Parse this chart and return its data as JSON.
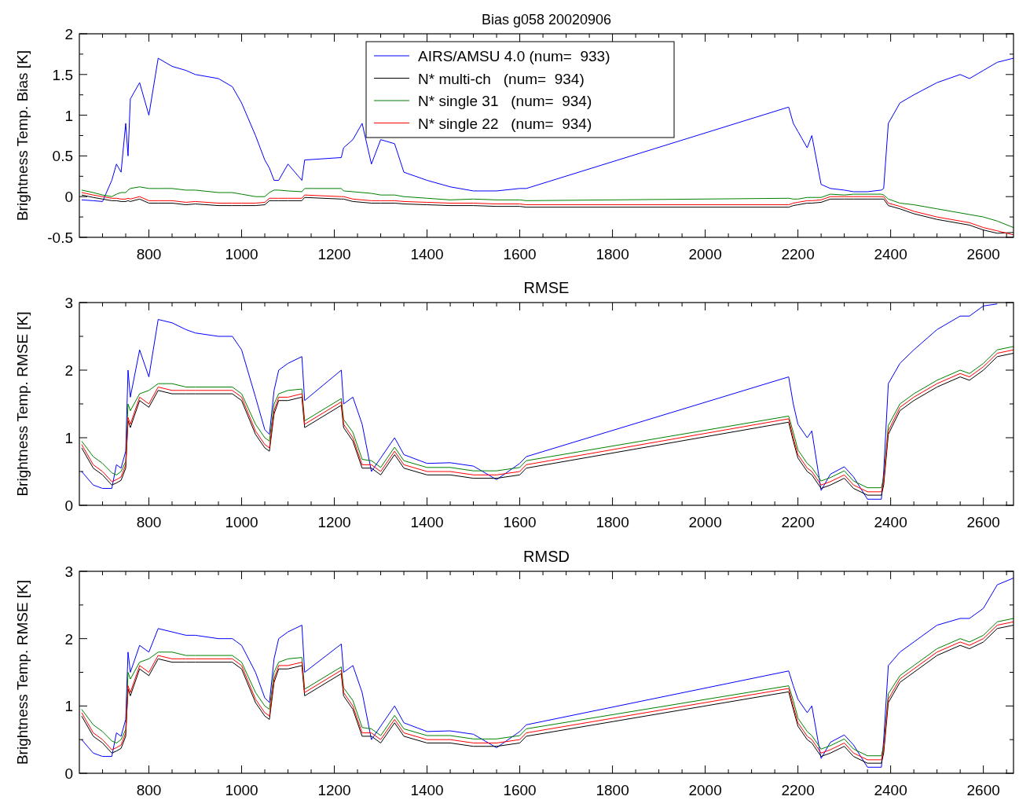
{
  "chart_data": [
    {
      "type": "line",
      "title": "Bias g058 20020906",
      "ylabel": "Brightness Temp. Bias [K]",
      "legend": "top",
      "xlim": [
        650,
        2665
      ],
      "ylim": [
        -0.5,
        2
      ],
      "xticks": [
        {
          "value": 700,
          "label": null
        },
        {
          "value": 750,
          "label": null
        },
        800,
        {
          "value": 850,
          "label": null
        },
        {
          "value": 900,
          "label": null
        },
        {
          "value": 950,
          "label": null
        },
        1000,
        {
          "value": 1050,
          "label": null
        },
        {
          "value": 1100,
          "label": null
        },
        {
          "value": 1150,
          "label": null
        },
        1200,
        {
          "value": 1250,
          "label": null
        },
        {
          "value": 1300,
          "label": null
        },
        {
          "value": 1350,
          "label": null
        },
        1400,
        {
          "value": 1450,
          "label": null
        },
        {
          "value": 1500,
          "label": null
        },
        {
          "value": 1550,
          "label": null
        },
        1600,
        {
          "value": 1650,
          "label": null
        },
        {
          "value": 1700,
          "label": null
        },
        {
          "value": 1750,
          "label": null
        },
        1800,
        {
          "value": 1850,
          "label": null
        },
        {
          "value": 1900,
          "label": null
        },
        {
          "value": 1950,
          "label": null
        },
        2000,
        {
          "value": 2050,
          "label": null
        },
        {
          "value": 2100,
          "label": null
        },
        {
          "value": 2150,
          "label": null
        },
        2200,
        {
          "value": 2250,
          "label": null
        },
        {
          "value": 2300,
          "label": null
        },
        {
          "value": 2350,
          "label": null
        },
        2400,
        {
          "value": 2450,
          "label": null
        },
        {
          "value": 2500,
          "label": null
        },
        {
          "value": 2550,
          "label": null
        },
        2600,
        {
          "value": 2650,
          "label": null
        }
      ],
      "yticks": [
        -0.5,
        {
          "value": -0.25,
          "label": null
        },
        0,
        {
          "value": 0.25,
          "label": null
        },
        0.5,
        {
          "value": 0.75,
          "label": null
        },
        1,
        {
          "value": 1.25,
          "label": null
        },
        1.5,
        {
          "value": 1.75,
          "label": null
        },
        2
      ],
      "x": [
        655,
        680,
        700,
        720,
        730,
        740,
        750,
        755,
        760,
        780,
        800,
        820,
        850,
        880,
        900,
        950,
        980,
        1000,
        1030,
        1050,
        1060,
        1070,
        1080,
        1100,
        1130,
        1136,
        1215,
        1220,
        1240,
        1260,
        1280,
        1300,
        1330,
        1350,
        1400,
        1450,
        1500,
        1550,
        1600,
        1614,
        2180,
        2190,
        2200,
        2220,
        2230,
        2250,
        2270,
        2300,
        2320,
        2350,
        2380,
        2385,
        2395,
        2420,
        2450,
        2500,
        2550,
        2570,
        2600,
        2630,
        2665
      ],
      "series": [
        {
          "name": "AIRS/AMSU 4.0 (num=  933)",
          "color": "#0000ff",
          "values": [
            -0.04,
            -0.05,
            -0.06,
            0.2,
            0.4,
            0.3,
            0.9,
            0.5,
            1.2,
            1.4,
            1.0,
            1.7,
            1.6,
            1.55,
            1.5,
            1.45,
            1.35,
            1.15,
            0.75,
            0.45,
            0.35,
            0.2,
            0.2,
            0.4,
            0.2,
            0.45,
            0.48,
            0.6,
            0.7,
            0.9,
            0.4,
            0.7,
            0.65,
            0.3,
            0.2,
            0.12,
            0.07,
            0.07,
            0.1,
            0.1,
            1.1,
            0.9,
            0.8,
            0.6,
            0.75,
            0.15,
            0.1,
            0.08,
            0.06,
            0.06,
            0.08,
            0.1,
            0.9,
            1.15,
            1.25,
            1.4,
            1.5,
            1.45,
            1.55,
            1.65,
            1.7
          ]
        },
        {
          "name": "N* multi-ch   (num=  934)",
          "color": "#000000",
          "values": [
            0.02,
            -0.01,
            -0.03,
            -0.05,
            -0.05,
            -0.06,
            -0.06,
            -0.05,
            -0.06,
            -0.03,
            -0.08,
            -0.08,
            -0.08,
            -0.1,
            -0.09,
            -0.11,
            -0.11,
            -0.11,
            -0.11,
            -0.1,
            -0.05,
            -0.05,
            -0.05,
            -0.05,
            -0.05,
            -0.01,
            -0.03,
            -0.03,
            -0.06,
            -0.07,
            -0.08,
            -0.08,
            -0.08,
            -0.09,
            -0.1,
            -0.11,
            -0.11,
            -0.12,
            -0.12,
            -0.13,
            -0.13,
            -0.11,
            -0.1,
            -0.08,
            -0.08,
            -0.07,
            -0.03,
            -0.03,
            -0.03,
            -0.03,
            -0.03,
            -0.03,
            -0.11,
            -0.15,
            -0.21,
            -0.28,
            -0.33,
            -0.35,
            -0.41,
            -0.45,
            -0.44
          ]
        },
        {
          "name": "N* single 31   (num=  934)",
          "color": "#008000",
          "values": [
            0.08,
            0.05,
            0.02,
            0.0,
            0.03,
            0.05,
            0.05,
            0.08,
            0.1,
            0.12,
            0.1,
            0.1,
            0.1,
            0.08,
            0.08,
            0.05,
            0.05,
            0.03,
            0.0,
            0.0,
            0.05,
            0.08,
            0.08,
            0.07,
            0.06,
            0.1,
            0.1,
            0.07,
            0.06,
            0.05,
            0.04,
            0.02,
            0.02,
            0.0,
            -0.02,
            -0.04,
            -0.03,
            -0.04,
            -0.04,
            -0.05,
            -0.02,
            -0.03,
            -0.03,
            -0.01,
            -0.01,
            -0.01,
            0.03,
            0.02,
            0.03,
            0.03,
            0.03,
            0.02,
            -0.03,
            -0.08,
            -0.1,
            -0.15,
            -0.2,
            -0.22,
            -0.25,
            -0.3,
            -0.38
          ]
        },
        {
          "name": "N* single 22   (num=  934)",
          "color": "#ff0000",
          "values": [
            0.05,
            0.02,
            0.0,
            -0.02,
            -0.02,
            -0.03,
            -0.03,
            -0.02,
            -0.03,
            0.0,
            -0.05,
            -0.05,
            -0.05,
            -0.07,
            -0.06,
            -0.08,
            -0.08,
            -0.08,
            -0.08,
            -0.07,
            -0.02,
            -0.02,
            -0.02,
            -0.02,
            -0.02,
            0.02,
            0.0,
            0.0,
            -0.03,
            -0.04,
            -0.05,
            -0.05,
            -0.05,
            -0.06,
            -0.07,
            -0.08,
            -0.08,
            -0.09,
            -0.09,
            -0.1,
            -0.1,
            -0.08,
            -0.07,
            -0.05,
            -0.05,
            -0.04,
            0.0,
            0.0,
            0.0,
            0.0,
            0.0,
            0.0,
            -0.08,
            -0.12,
            -0.18,
            -0.25,
            -0.3,
            -0.32,
            -0.38,
            -0.42,
            -0.47
          ]
        }
      ]
    },
    {
      "type": "line",
      "title": "RMSE",
      "ylabel": "Brightness Temp. RMSE [K]",
      "xlim": [
        650,
        2665
      ],
      "ylim": [
        0,
        3
      ],
      "xticks": [
        {
          "value": 700,
          "label": null
        },
        {
          "value": 750,
          "label": null
        },
        800,
        {
          "value": 850,
          "label": null
        },
        {
          "value": 900,
          "label": null
        },
        {
          "value": 950,
          "label": null
        },
        1000,
        {
          "value": 1050,
          "label": null
        },
        {
          "value": 1100,
          "label": null
        },
        {
          "value": 1150,
          "label": null
        },
        1200,
        {
          "value": 1250,
          "label": null
        },
        {
          "value": 1300,
          "label": null
        },
        {
          "value": 1350,
          "label": null
        },
        1400,
        {
          "value": 1450,
          "label": null
        },
        {
          "value": 1500,
          "label": null
        },
        {
          "value": 1550,
          "label": null
        },
        1600,
        {
          "value": 1650,
          "label": null
        },
        {
          "value": 1700,
          "label": null
        },
        {
          "value": 1750,
          "label": null
        },
        1800,
        {
          "value": 1850,
          "label": null
        },
        {
          "value": 1900,
          "label": null
        },
        {
          "value": 1950,
          "label": null
        },
        2000,
        {
          "value": 2050,
          "label": null
        },
        {
          "value": 2100,
          "label": null
        },
        {
          "value": 2150,
          "label": null
        },
        2200,
        {
          "value": 2250,
          "label": null
        },
        {
          "value": 2300,
          "label": null
        },
        {
          "value": 2350,
          "label": null
        },
        2400,
        {
          "value": 2450,
          "label": null
        },
        {
          "value": 2500,
          "label": null
        },
        {
          "value": 2550,
          "label": null
        },
        2600,
        {
          "value": 2650,
          "label": null
        }
      ],
      "yticks": [
        0,
        {
          "value": 0.5,
          "label": null
        },
        1,
        {
          "value": 1.5,
          "label": null
        },
        2,
        {
          "value": 2.5,
          "label": null
        },
        3
      ],
      "x": [
        655,
        680,
        700,
        720,
        730,
        740,
        750,
        755,
        760,
        780,
        800,
        820,
        850,
        880,
        900,
        950,
        980,
        1000,
        1030,
        1050,
        1060,
        1070,
        1080,
        1100,
        1130,
        1136,
        1215,
        1220,
        1240,
        1260,
        1280,
        1300,
        1330,
        1350,
        1400,
        1450,
        1500,
        1550,
        1600,
        1614,
        2180,
        2190,
        2200,
        2220,
        2230,
        2250,
        2270,
        2300,
        2320,
        2350,
        2380,
        2385,
        2395,
        2420,
        2450,
        2500,
        2550,
        2570,
        2600,
        2630,
        2665
      ],
      "series": [
        {
          "color": "#0000ff",
          "values": [
            0.5,
            0.3,
            0.25,
            0.25,
            0.6,
            0.55,
            0.8,
            2.0,
            1.6,
            2.3,
            1.9,
            2.75,
            2.7,
            2.6,
            2.55,
            2.5,
            2.5,
            2.3,
            1.6,
            1.12,
            1.05,
            1.7,
            2.0,
            2.1,
            2.2,
            1.55,
            2.0,
            1.5,
            1.6,
            1.2,
            0.5,
            0.7,
            1.0,
            0.75,
            0.62,
            0.63,
            0.58,
            0.38,
            0.62,
            0.72,
            1.9,
            1.5,
            1.2,
            1.0,
            1.1,
            0.22,
            0.46,
            0.57,
            0.42,
            0.09,
            0.09,
            0.5,
            1.8,
            2.1,
            2.3,
            2.6,
            2.8,
            2.8,
            2.95,
            2.98,
            null
          ]
        },
        {
          "color": "#000000",
          "values": [
            0.85,
            0.55,
            0.45,
            0.3,
            0.33,
            0.37,
            0.55,
            1.25,
            1.15,
            1.55,
            1.45,
            1.7,
            1.65,
            1.65,
            1.65,
            1.65,
            1.65,
            1.55,
            1.05,
            0.85,
            0.8,
            1.35,
            1.55,
            1.55,
            1.6,
            1.15,
            1.48,
            1.15,
            0.95,
            0.55,
            0.55,
            0.45,
            0.75,
            0.55,
            0.45,
            0.45,
            0.4,
            0.4,
            0.45,
            0.55,
            1.23,
            0.95,
            0.7,
            0.5,
            0.45,
            0.25,
            0.3,
            0.4,
            0.25,
            0.15,
            0.15,
            0.3,
            1.05,
            1.4,
            1.55,
            1.75,
            1.9,
            1.85,
            2.0,
            2.2,
            2.25
          ]
        },
        {
          "color": "#008000",
          "values": [
            0.95,
            0.72,
            0.62,
            0.48,
            0.45,
            0.5,
            0.65,
            1.5,
            1.4,
            1.65,
            1.7,
            1.8,
            1.8,
            1.75,
            1.75,
            1.75,
            1.75,
            1.65,
            1.2,
            1.0,
            0.95,
            1.5,
            1.65,
            1.7,
            1.72,
            1.25,
            1.58,
            1.27,
            1.08,
            0.68,
            0.66,
            0.56,
            0.86,
            0.66,
            0.56,
            0.56,
            0.51,
            0.51,
            0.56,
            0.66,
            1.32,
            1.08,
            0.82,
            0.62,
            0.56,
            0.36,
            0.41,
            0.51,
            0.36,
            0.26,
            0.26,
            0.41,
            1.18,
            1.5,
            1.65,
            1.85,
            2.0,
            1.95,
            2.1,
            2.3,
            2.35
          ]
        },
        {
          "color": "#ff0000",
          "values": [
            0.9,
            0.6,
            0.5,
            0.35,
            0.38,
            0.42,
            0.6,
            1.3,
            1.2,
            1.6,
            1.5,
            1.75,
            1.7,
            1.7,
            1.7,
            1.7,
            1.7,
            1.6,
            1.1,
            0.9,
            0.85,
            1.4,
            1.6,
            1.6,
            1.65,
            1.2,
            1.53,
            1.2,
            1.0,
            0.6,
            0.6,
            0.5,
            0.8,
            0.6,
            0.5,
            0.5,
            0.45,
            0.45,
            0.5,
            0.6,
            1.28,
            1.0,
            0.75,
            0.55,
            0.5,
            0.3,
            0.35,
            0.45,
            0.3,
            0.2,
            0.2,
            0.35,
            1.1,
            1.45,
            1.6,
            1.8,
            1.95,
            1.9,
            2.05,
            2.25,
            2.3
          ]
        }
      ]
    },
    {
      "type": "line",
      "title": "RMSD",
      "ylabel": "Brightness Temp. RMSE [K]",
      "xlim": [
        650,
        2665
      ],
      "ylim": [
        0,
        3
      ],
      "xticks": [
        {
          "value": 700,
          "label": null
        },
        {
          "value": 750,
          "label": null
        },
        800,
        {
          "value": 850,
          "label": null
        },
        {
          "value": 900,
          "label": null
        },
        {
          "value": 950,
          "label": null
        },
        1000,
        {
          "value": 1050,
          "label": null
        },
        {
          "value": 1100,
          "label": null
        },
        {
          "value": 1150,
          "label": null
        },
        1200,
        {
          "value": 1250,
          "label": null
        },
        {
          "value": 1300,
          "label": null
        },
        {
          "value": 1350,
          "label": null
        },
        1400,
        {
          "value": 1450,
          "label": null
        },
        {
          "value": 1500,
          "label": null
        },
        {
          "value": 1550,
          "label": null
        },
        1600,
        {
          "value": 1650,
          "label": null
        },
        {
          "value": 1700,
          "label": null
        },
        {
          "value": 1750,
          "label": null
        },
        1800,
        {
          "value": 1850,
          "label": null
        },
        {
          "value": 1900,
          "label": null
        },
        {
          "value": 1950,
          "label": null
        },
        2000,
        {
          "value": 2050,
          "label": null
        },
        {
          "value": 2100,
          "label": null
        },
        {
          "value": 2150,
          "label": null
        },
        2200,
        {
          "value": 2250,
          "label": null
        },
        {
          "value": 2300,
          "label": null
        },
        {
          "value": 2350,
          "label": null
        },
        2400,
        {
          "value": 2450,
          "label": null
        },
        {
          "value": 2500,
          "label": null
        },
        {
          "value": 2550,
          "label": null
        },
        2600,
        {
          "value": 2650,
          "label": null
        }
      ],
      "yticks": [
        0,
        {
          "value": 0.5,
          "label": null
        },
        1,
        {
          "value": 1.5,
          "label": null
        },
        2,
        {
          "value": 2.5,
          "label": null
        },
        3
      ],
      "x": [
        655,
        680,
        700,
        720,
        730,
        740,
        750,
        755,
        760,
        780,
        800,
        820,
        850,
        880,
        900,
        950,
        980,
        1000,
        1030,
        1050,
        1060,
        1070,
        1080,
        1100,
        1130,
        1136,
        1215,
        1220,
        1240,
        1260,
        1280,
        1300,
        1330,
        1350,
        1400,
        1450,
        1500,
        1550,
        1600,
        1614,
        2180,
        2190,
        2200,
        2220,
        2230,
        2250,
        2270,
        2300,
        2320,
        2350,
        2380,
        2385,
        2395,
        2420,
        2450,
        2500,
        2550,
        2570,
        2600,
        2630,
        2665
      ],
      "series": [
        {
          "color": "#0000ff",
          "values": [
            0.5,
            0.3,
            0.25,
            0.25,
            0.6,
            0.55,
            0.8,
            1.8,
            1.5,
            1.9,
            1.8,
            2.15,
            2.1,
            2.05,
            2.05,
            2.0,
            2.0,
            1.9,
            1.5,
            1.12,
            1.05,
            1.7,
            2.0,
            2.1,
            2.2,
            1.5,
            1.92,
            1.5,
            1.6,
            1.2,
            0.5,
            0.7,
            1.0,
            0.75,
            0.62,
            0.63,
            0.58,
            0.38,
            0.62,
            0.72,
            1.52,
            1.3,
            1.1,
            0.9,
            1.0,
            0.22,
            0.46,
            0.57,
            0.42,
            0.09,
            0.09,
            0.5,
            1.6,
            1.8,
            1.95,
            2.2,
            2.3,
            2.3,
            2.45,
            2.8,
            2.9
          ]
        },
        {
          "color": "#000000",
          "values": [
            0.85,
            0.55,
            0.45,
            0.3,
            0.33,
            0.37,
            0.55,
            1.25,
            1.15,
            1.55,
            1.45,
            1.7,
            1.65,
            1.65,
            1.65,
            1.65,
            1.65,
            1.55,
            1.05,
            0.85,
            0.8,
            1.35,
            1.55,
            1.55,
            1.6,
            1.15,
            1.48,
            1.15,
            0.95,
            0.55,
            0.55,
            0.45,
            0.75,
            0.55,
            0.45,
            0.45,
            0.4,
            0.4,
            0.45,
            0.55,
            1.21,
            0.95,
            0.7,
            0.5,
            0.45,
            0.25,
            0.3,
            0.4,
            0.25,
            0.15,
            0.15,
            0.3,
            1.05,
            1.35,
            1.5,
            1.75,
            1.9,
            1.85,
            1.95,
            2.15,
            2.2
          ]
        },
        {
          "color": "#008000",
          "values": [
            0.95,
            0.72,
            0.62,
            0.48,
            0.45,
            0.5,
            0.65,
            1.5,
            1.4,
            1.65,
            1.7,
            1.8,
            1.8,
            1.75,
            1.75,
            1.75,
            1.75,
            1.65,
            1.2,
            1.0,
            0.95,
            1.5,
            1.65,
            1.7,
            1.72,
            1.25,
            1.58,
            1.27,
            1.08,
            0.68,
            0.66,
            0.56,
            0.86,
            0.66,
            0.56,
            0.56,
            0.51,
            0.51,
            0.56,
            0.66,
            1.3,
            1.08,
            0.82,
            0.62,
            0.56,
            0.36,
            0.41,
            0.51,
            0.36,
            0.26,
            0.26,
            0.41,
            1.18,
            1.45,
            1.6,
            1.85,
            2.0,
            1.95,
            2.05,
            2.25,
            2.3
          ]
        },
        {
          "color": "#ff0000",
          "values": [
            0.9,
            0.6,
            0.5,
            0.35,
            0.38,
            0.42,
            0.6,
            1.3,
            1.2,
            1.6,
            1.5,
            1.75,
            1.7,
            1.7,
            1.7,
            1.7,
            1.7,
            1.6,
            1.1,
            0.9,
            0.85,
            1.4,
            1.6,
            1.6,
            1.65,
            1.2,
            1.53,
            1.2,
            1.0,
            0.6,
            0.6,
            0.5,
            0.8,
            0.6,
            0.5,
            0.5,
            0.45,
            0.45,
            0.5,
            0.6,
            1.26,
            1.0,
            0.75,
            0.55,
            0.5,
            0.3,
            0.35,
            0.45,
            0.3,
            0.2,
            0.2,
            0.35,
            1.1,
            1.4,
            1.55,
            1.8,
            1.95,
            1.9,
            2.0,
            2.2,
            2.25
          ]
        }
      ]
    }
  ]
}
